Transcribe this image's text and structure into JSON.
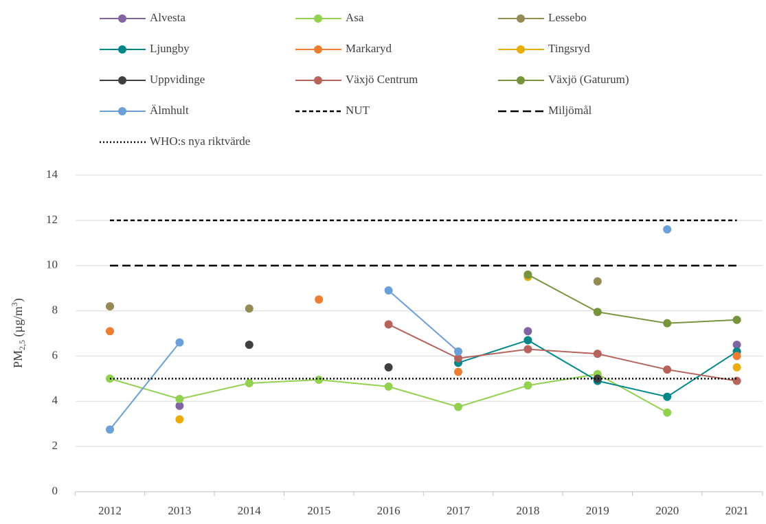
{
  "chart_data": {
    "type": "line",
    "ylabel_parts": [
      "PM",
      "2,5",
      " (µg/m",
      "3",
      ")"
    ],
    "categories": [
      "2012",
      "2013",
      "2014",
      "2015",
      "2016",
      "2017",
      "2018",
      "2019",
      "2020",
      "2021"
    ],
    "ylim": [
      0,
      14
    ],
    "yticks": [
      0,
      2,
      4,
      6,
      8,
      10,
      12,
      14
    ],
    "grid": true,
    "series": [
      {
        "name": "Alvesta",
        "color": "#8064a2",
        "values": [
          null,
          3.8,
          null,
          null,
          null,
          null,
          7.1,
          null,
          null,
          6.5
        ]
      },
      {
        "name": "Asa",
        "color": "#92d050",
        "values": [
          5.0,
          4.1,
          4.8,
          4.95,
          4.65,
          3.75,
          4.7,
          5.2,
          3.5,
          null
        ]
      },
      {
        "name": "Lessebo",
        "color": "#948a54",
        "values": [
          8.2,
          null,
          8.1,
          null,
          null,
          null,
          null,
          9.3,
          null,
          null
        ]
      },
      {
        "name": "Ljungby",
        "color": "#00878a",
        "values": [
          null,
          null,
          null,
          null,
          null,
          5.7,
          6.7,
          4.9,
          4.2,
          6.2
        ]
      },
      {
        "name": "Markaryd",
        "color": "#ed7d31",
        "values": [
          7.1,
          null,
          null,
          8.5,
          null,
          5.3,
          null,
          null,
          null,
          6.0
        ]
      },
      {
        "name": "Tingsryd",
        "color": "#e8ad0c",
        "values": [
          null,
          3.2,
          null,
          null,
          null,
          null,
          9.5,
          null,
          null,
          5.5
        ]
      },
      {
        "name": "Uppvidinge",
        "color": "#404040",
        "values": [
          null,
          null,
          6.5,
          null,
          5.5,
          null,
          null,
          5.0,
          null,
          null
        ]
      },
      {
        "name": "Växjö Centrum",
        "color": "#b5635b",
        "values": [
          null,
          null,
          null,
          null,
          7.4,
          5.9,
          6.3,
          6.1,
          5.4,
          4.9
        ]
      },
      {
        "name": "Växjö (Gaturum)",
        "color": "#77933c",
        "values": [
          null,
          null,
          null,
          null,
          null,
          null,
          9.6,
          7.95,
          7.45,
          7.6
        ]
      },
      {
        "name": "Älmhult",
        "color": "#6a9fd8",
        "values": [
          2.75,
          6.6,
          null,
          null,
          8.9,
          6.2,
          null,
          null,
          11.6,
          null
        ]
      },
      {
        "name": "NUT",
        "color": "#000000",
        "dash": "6,4",
        "markers": false,
        "values": [
          12,
          12,
          12,
          12,
          12,
          12,
          12,
          12,
          12,
          12
        ]
      },
      {
        "name": "Miljömål",
        "color": "#000000",
        "dash": "12,6",
        "markers": false,
        "values": [
          10,
          10,
          10,
          10,
          10,
          10,
          10,
          10,
          10,
          10
        ]
      },
      {
        "name": "WHO:s nya riktvärde",
        "color": "#000000",
        "dash": "2,3",
        "markers": false,
        "values": [
          5,
          5,
          5,
          5,
          5,
          5,
          5,
          5,
          5,
          5
        ]
      }
    ]
  }
}
